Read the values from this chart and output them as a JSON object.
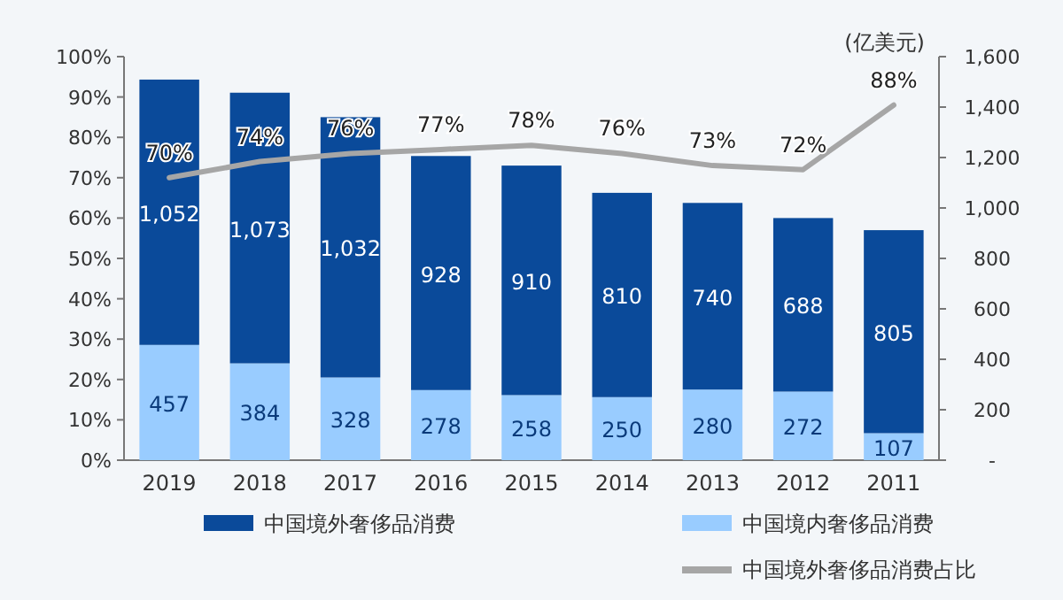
{
  "chart_data": {
    "type": "bar",
    "stacked": true,
    "y2label": "(亿美元)",
    "categories": [
      "2019",
      "2018",
      "2017",
      "2016",
      "2015",
      "2014",
      "2013",
      "2012",
      "2011"
    ],
    "series": [
      {
        "name": "中国境内奢侈品消费",
        "color": "#99ccff",
        "axis": "y2",
        "values": [
          457,
          384,
          328,
          278,
          258,
          250,
          280,
          272,
          107
        ],
        "value_labels": [
          "457",
          "384",
          "328",
          "278",
          "258",
          "250",
          "280",
          "272",
          "107"
        ]
      },
      {
        "name": "中国境外奢侈品消费",
        "color": "#0a4a9a",
        "axis": "y2",
        "values": [
          1052,
          1073,
          1032,
          928,
          910,
          810,
          740,
          688,
          805
        ],
        "value_labels": [
          "1,052",
          "1,073",
          "1,032",
          "928",
          "910",
          "810",
          "740",
          "688",
          "805"
        ]
      },
      {
        "name": "中国境外奢侈品消费占比",
        "type": "line",
        "color": "#a6a6a6",
        "axis": "y",
        "values": [
          70,
          74,
          76,
          77,
          78,
          76,
          73,
          72,
          88
        ],
        "value_labels": [
          "70%",
          "74%",
          "76%",
          "77%",
          "78%",
          "76%",
          "73%",
          "72%",
          "88%"
        ]
      }
    ],
    "ylim": [
      0,
      100
    ],
    "yticks": [
      {
        "value": 0,
        "label": "0%"
      },
      {
        "value": 10,
        "label": "10%"
      },
      {
        "value": 20,
        "label": "20%"
      },
      {
        "value": 30,
        "label": "30%"
      },
      {
        "value": 40,
        "label": "40%"
      },
      {
        "value": 50,
        "label": "50%"
      },
      {
        "value": 60,
        "label": "60%"
      },
      {
        "value": 70,
        "label": "70%"
      },
      {
        "value": 80,
        "label": "80%"
      },
      {
        "value": 90,
        "label": "90%"
      },
      {
        "value": 100,
        "label": "100%"
      }
    ],
    "y2lim": [
      0,
      1600
    ],
    "y2ticks": [
      {
        "value": 0,
        "label": "-"
      },
      {
        "value": 200,
        "label": "200"
      },
      {
        "value": 400,
        "label": "400"
      },
      {
        "value": 600,
        "label": "600"
      },
      {
        "value": 800,
        "label": "800"
      },
      {
        "value": 1000,
        "label": "1,000"
      },
      {
        "value": 1200,
        "label": "1,200"
      },
      {
        "value": 1400,
        "label": "1,400"
      },
      {
        "value": 1600,
        "label": "1,600"
      }
    ],
    "legend": "bottom",
    "grid": false
  }
}
